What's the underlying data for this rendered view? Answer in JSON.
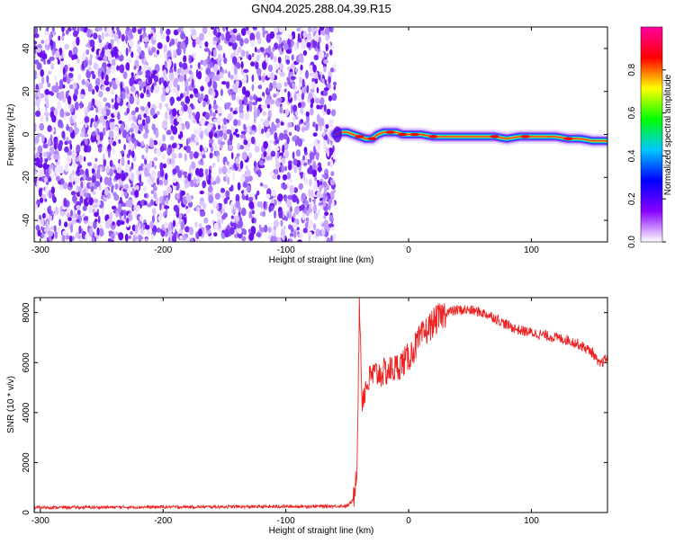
{
  "title": "GN04.2025.288.04.39.R15",
  "chart_data": [
    {
      "type": "heatmap",
      "title": "",
      "xlabel": "Height of straight line (km)",
      "ylabel": "Frequency (Hz)",
      "xlim": [
        -305,
        162
      ],
      "ylim": [
        -50,
        50
      ],
      "xticks": [
        -300,
        -200,
        -100,
        0,
        100
      ],
      "yticks": [
        -40,
        -20,
        0,
        20,
        40
      ],
      "noise_region": {
        "x_range": [
          -305,
          -60
        ],
        "y_range": [
          -50,
          50
        ],
        "amplitude_range": [
          0.0,
          0.25
        ]
      },
      "signal_track": {
        "x": [
          -60,
          -55,
          -50,
          -45,
          -40,
          -35,
          -30,
          -25,
          -20,
          -15,
          -10,
          -5,
          0,
          10,
          20,
          30,
          40,
          50,
          60,
          70,
          80,
          90,
          100,
          110,
          120,
          130,
          140,
          150,
          162
        ],
        "freq_hz": [
          0,
          1,
          1,
          0,
          -1,
          -2,
          -2,
          0,
          1,
          1,
          1,
          0,
          0,
          0,
          -1,
          -1,
          -1,
          -1,
          -1,
          -1,
          -2,
          -1,
          -1,
          -1,
          -1,
          -2,
          -2,
          -3,
          -3
        ],
        "peak_amplitude": 1.0
      },
      "colorbar": {
        "label": "Normalized spectral amplitude",
        "range": [
          0.0,
          1.0
        ],
        "ticks": [
          "0.0",
          "0.2",
          "0.4",
          "0.6",
          "0.8"
        ],
        "colors": [
          "#ffffff",
          "#8800ff",
          "#0000ff",
          "#00c8ff",
          "#00ff00",
          "#ffff00",
          "#ff0000",
          "#ff00a0"
        ]
      },
      "colors": {
        "noise": "#7a2cf5"
      }
    },
    {
      "type": "line",
      "title": "",
      "xlabel": "Height of straight line (km)",
      "ylabel": "SNR (10 * v/v)",
      "xlim": [
        -305,
        162
      ],
      "ylim": [
        0,
        8600
      ],
      "xticks": [
        -300,
        -200,
        -100,
        0,
        100
      ],
      "yticks": [
        0,
        2000,
        4000,
        6000,
        8000
      ],
      "series": [
        {
          "x": [
            -305,
            -250,
            -200,
            -150,
            -100,
            -50,
            -45,
            -42,
            -40,
            -38,
            -35,
            -30,
            -20,
            -10,
            0,
            10,
            20,
            30,
            40,
            50,
            60,
            70,
            80,
            90,
            100,
            110,
            120,
            130,
            140,
            150,
            155,
            162
          ],
          "values": [
            200,
            210,
            220,
            230,
            240,
            260,
            500,
            2000,
            8500,
            4500,
            5000,
            5500,
            5600,
            5800,
            6200,
            7000,
            7600,
            8000,
            8100,
            8100,
            8000,
            7800,
            7500,
            7300,
            7200,
            7100,
            7000,
            6900,
            6700,
            6400,
            5900,
            6200
          ],
          "color": "#ee2222"
        }
      ]
    }
  ]
}
